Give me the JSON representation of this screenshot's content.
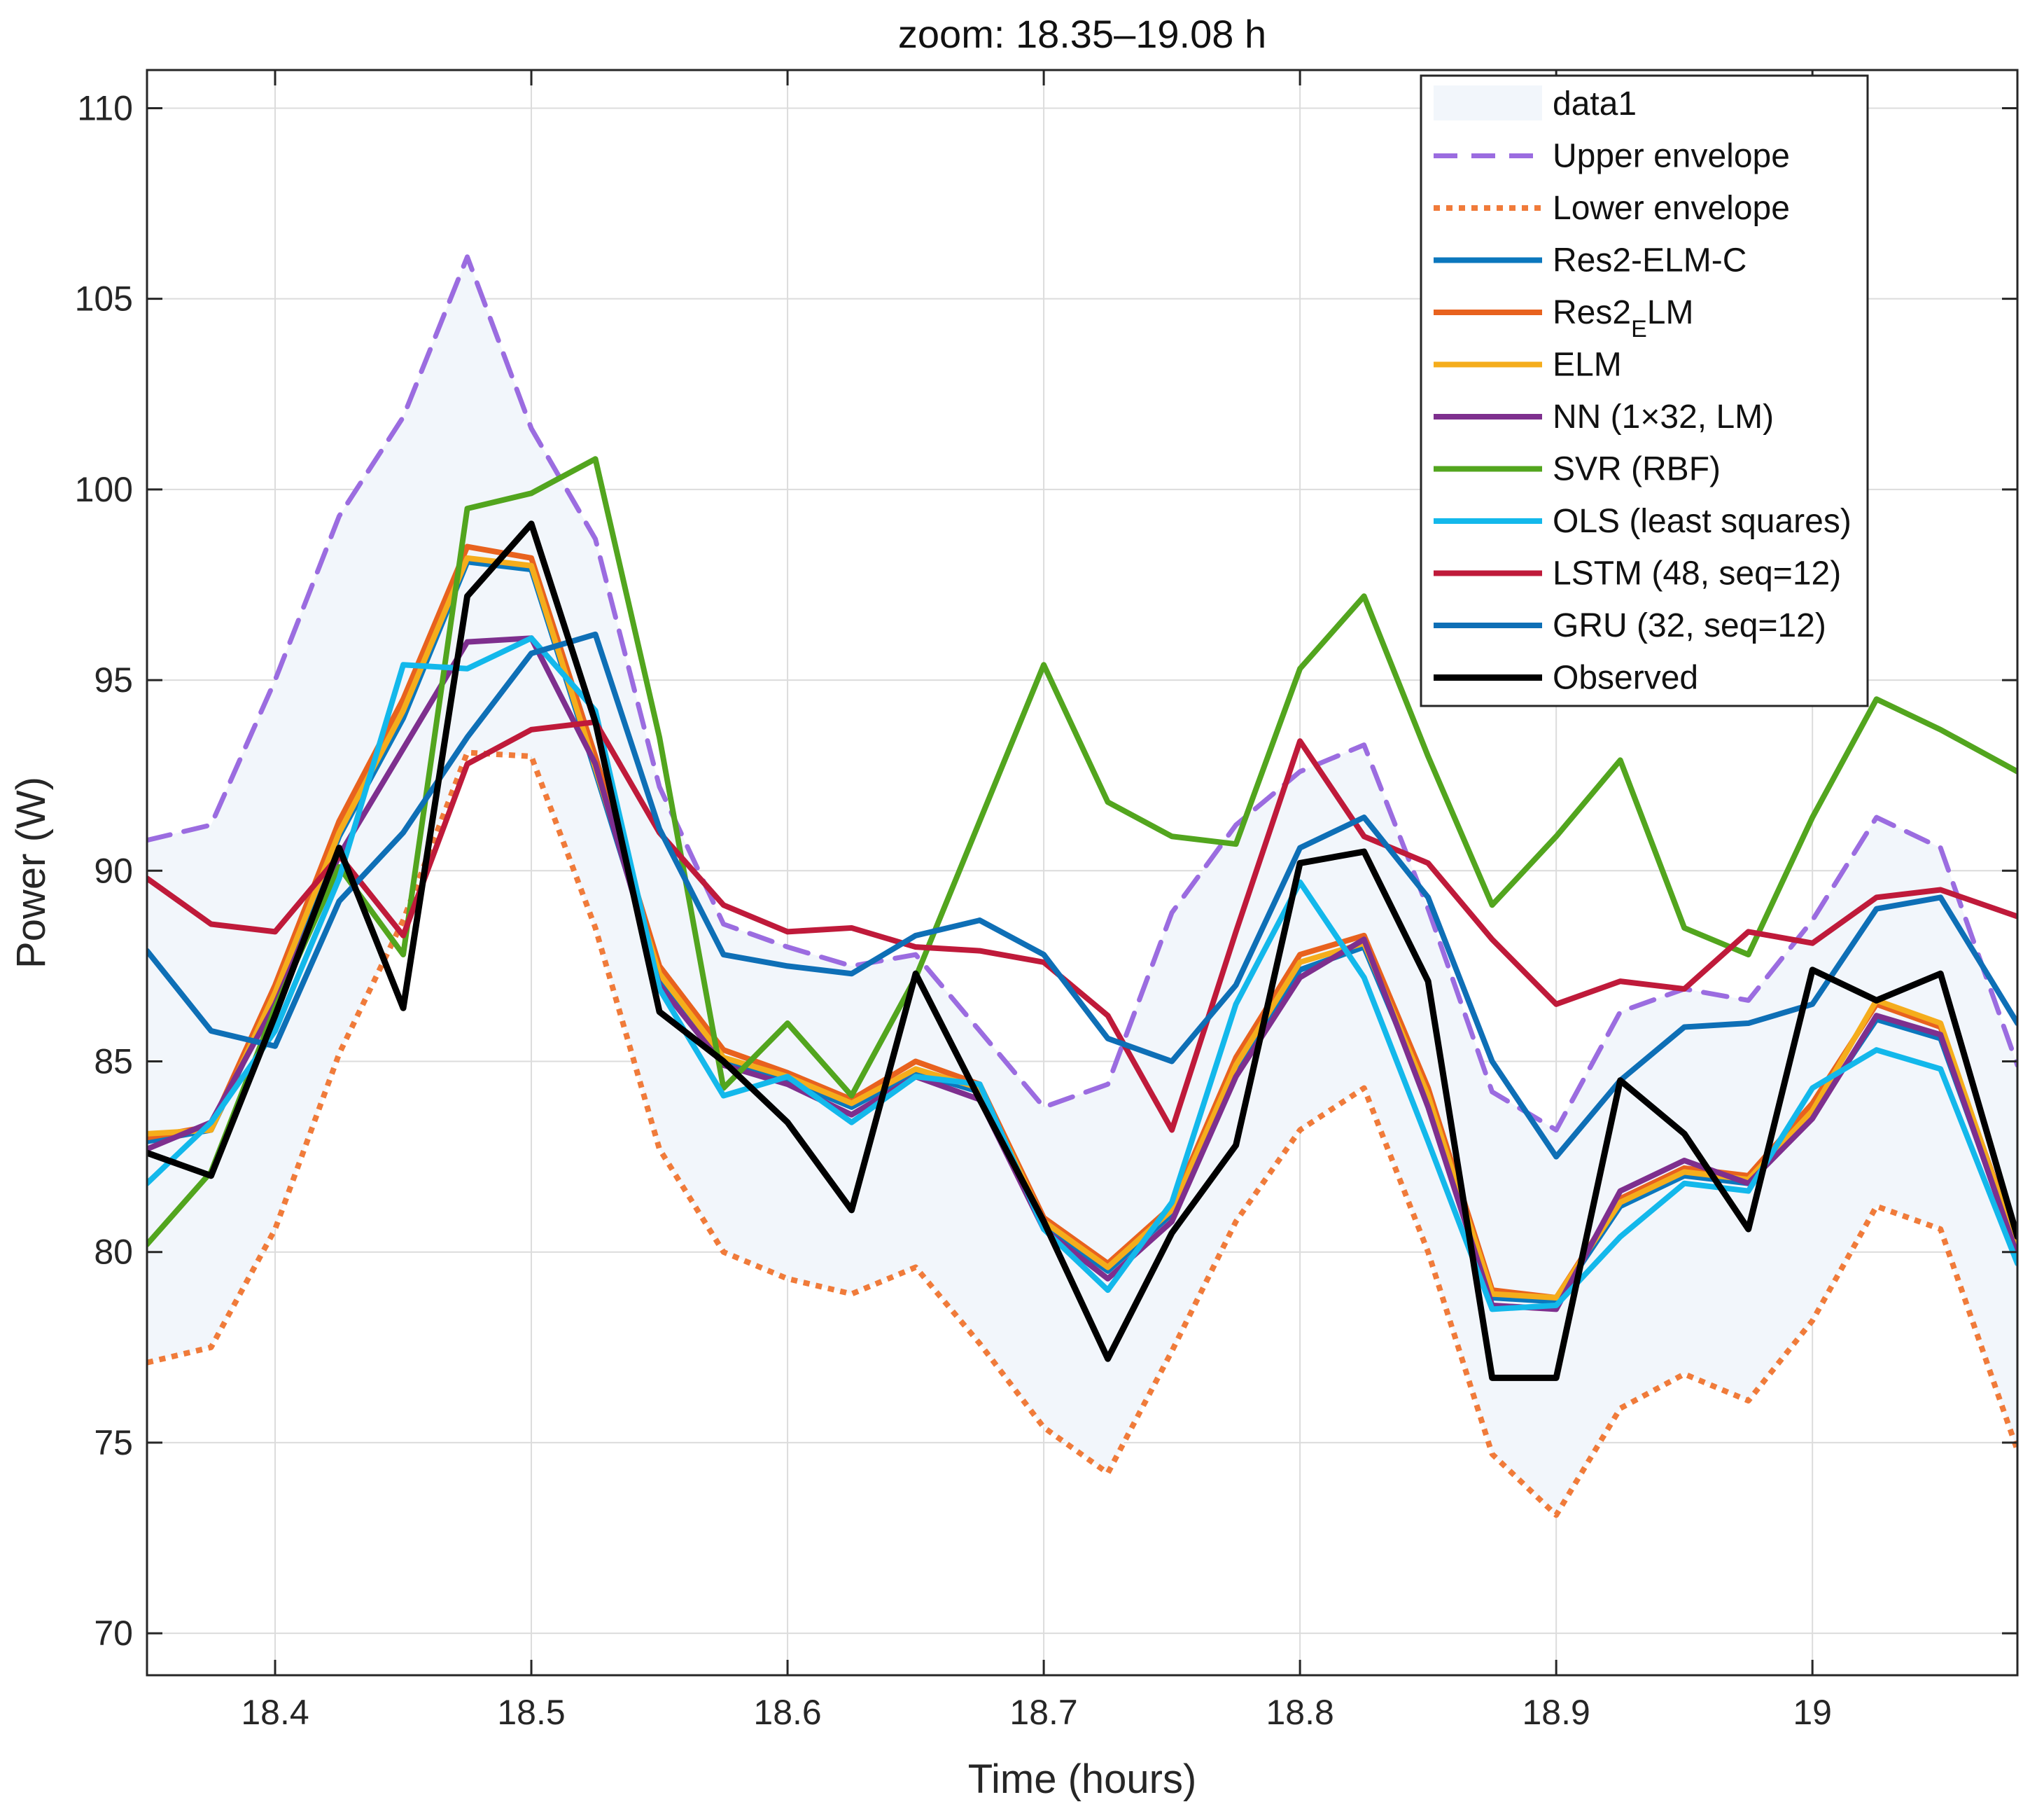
{
  "chart_data": {
    "type": "line",
    "title": "zoom: 18.35–19.08 h",
    "xlabel": "Time (hours)",
    "ylabel": "Power (W)",
    "xlim": [
      18.35,
      19.08
    ],
    "ylim": [
      68.9,
      111.0
    ],
    "xticks": [
      18.4,
      18.5,
      18.6,
      18.7,
      18.8,
      18.9,
      19.0
    ],
    "xtick_labels": [
      "18.4",
      "18.5",
      "18.6",
      "18.7",
      "18.8",
      "18.9",
      "19"
    ],
    "yticks": [
      70,
      75,
      80,
      85,
      90,
      95,
      100,
      105,
      110
    ],
    "ytick_labels": [
      "70",
      "75",
      "80",
      "85",
      "90",
      "95",
      "100",
      "105",
      "110"
    ],
    "grid": true,
    "legend_position": "top-right",
    "band": {
      "name": "data1",
      "color": "#f2f6fb",
      "upper": "Upper envelope",
      "lower": "Lower envelope"
    },
    "x": [
      18.35,
      18.375,
      18.4,
      18.425,
      18.45,
      18.475,
      18.5,
      18.525,
      18.55,
      18.575,
      18.6,
      18.625,
      18.65,
      18.675,
      18.7,
      18.725,
      18.75,
      18.775,
      18.8,
      18.825,
      18.85,
      18.875,
      18.9,
      18.925,
      18.95,
      18.975,
      19.0,
      19.025,
      19.05,
      19.08
    ],
    "series": [
      {
        "name": "Upper envelope",
        "color": "#9b6ce0",
        "style": "dashed",
        "width": 7,
        "values": [
          90.8,
          91.2,
          95.0,
          99.3,
          101.9,
          106.1,
          101.6,
          98.7,
          92.2,
          88.6,
          88.0,
          87.5,
          87.8,
          85.8,
          83.8,
          84.4,
          88.9,
          91.2,
          92.6,
          93.3,
          89.0,
          84.2,
          83.2,
          86.3,
          86.9,
          86.6,
          88.7,
          91.4,
          90.6,
          84.9
        ]
      },
      {
        "name": "Lower envelope",
        "color": "#f07b3a",
        "style": "dotted",
        "width": 8,
        "values": [
          77.1,
          77.5,
          80.6,
          85.2,
          88.7,
          93.1,
          93.0,
          88.5,
          82.7,
          80.0,
          79.3,
          78.9,
          79.6,
          77.6,
          75.4,
          74.2,
          77.4,
          80.8,
          83.2,
          84.3,
          80.0,
          74.7,
          73.1,
          75.9,
          76.8,
          76.1,
          78.2,
          81.2,
          80.6,
          74.8
        ]
      },
      {
        "name": "Res2-ELM-C",
        "color": "#0b77bd",
        "style": "solid",
        "width": 8,
        "values": [
          82.9,
          83.2,
          86.7,
          90.9,
          94.0,
          98.1,
          97.9,
          92.6,
          87.2,
          85.0,
          84.5,
          83.8,
          84.7,
          84.2,
          80.7,
          79.5,
          81.0,
          84.8,
          87.4,
          88.0,
          84.0,
          78.8,
          78.7,
          81.2,
          82.0,
          81.8,
          83.6,
          86.1,
          85.6,
          80.0
        ]
      },
      {
        "name": "Res2_ELM",
        "color": "#e8621e",
        "style": "solid",
        "width": 8,
        "values": [
          83.0,
          83.3,
          87.0,
          91.3,
          94.5,
          98.5,
          98.2,
          93.0,
          87.5,
          85.3,
          84.7,
          84.0,
          85.0,
          84.4,
          80.9,
          79.7,
          81.2,
          85.1,
          87.8,
          88.3,
          84.3,
          79.0,
          78.8,
          81.4,
          82.2,
          82.0,
          83.9,
          86.5,
          85.9,
          80.2
        ]
      },
      {
        "name": "ELM",
        "color": "#f5ad1c",
        "style": "solid",
        "width": 8,
        "values": [
          83.1,
          83.2,
          86.8,
          91.0,
          94.2,
          98.2,
          98.0,
          92.7,
          87.3,
          85.1,
          84.6,
          83.9,
          84.8,
          84.3,
          80.8,
          79.6,
          81.1,
          84.9,
          87.6,
          88.1,
          84.1,
          78.9,
          78.8,
          81.3,
          82.1,
          81.9,
          83.7,
          86.6,
          86.0,
          80.1
        ]
      },
      {
        "name": "NN (1×32, LM)",
        "color": "#7e2f8e",
        "style": "solid",
        "width": 8,
        "values": [
          82.7,
          83.4,
          86.5,
          90.4,
          93.2,
          96.0,
          96.1,
          92.8,
          87.0,
          84.9,
          84.4,
          83.6,
          84.6,
          84.0,
          80.6,
          79.3,
          80.8,
          84.6,
          87.2,
          88.2,
          83.8,
          78.6,
          78.5,
          81.6,
          82.4,
          81.8,
          83.5,
          86.2,
          85.7,
          79.9
        ]
      },
      {
        "name": "SVR (RBF)",
        "color": "#52a51e",
        "style": "solid",
        "width": 8,
        "values": [
          80.2,
          82.1,
          86.4,
          90.1,
          87.8,
          99.5,
          99.9,
          100.8,
          93.5,
          84.3,
          86.0,
          84.1,
          87.2,
          91.3,
          95.4,
          91.8,
          90.9,
          90.7,
          95.3,
          97.2,
          93.0,
          89.1,
          90.9,
          92.9,
          88.5,
          87.8,
          91.4,
          94.5,
          93.7,
          92.6
        ]
      },
      {
        "name": "OLS (least squares)",
        "color": "#13b8eb",
        "style": "solid",
        "width": 8,
        "values": [
          81.8,
          83.4,
          85.8,
          89.8,
          95.4,
          95.3,
          96.1,
          94.2,
          86.9,
          84.1,
          84.6,
          83.4,
          84.6,
          84.4,
          80.6,
          79.0,
          81.3,
          86.5,
          89.7,
          87.2,
          82.9,
          78.5,
          78.6,
          80.4,
          81.8,
          81.6,
          84.3,
          85.3,
          84.8,
          79.7
        ]
      },
      {
        "name": "LSTM (48, seq=12)",
        "color": "#bf1a3a",
        "style": "solid",
        "width": 8,
        "values": [
          89.8,
          88.6,
          88.4,
          90.4,
          88.3,
          92.8,
          93.7,
          93.9,
          91.0,
          89.1,
          88.4,
          88.5,
          88.0,
          87.9,
          87.6,
          86.2,
          83.2,
          88.4,
          93.4,
          90.9,
          90.2,
          88.2,
          86.5,
          87.1,
          86.9,
          88.4,
          88.1,
          89.3,
          89.5,
          88.8
        ]
      },
      {
        "name": "GRU (32, seq=12)",
        "color": "#0e6fb6",
        "style": "solid",
        "width": 8,
        "values": [
          87.9,
          85.8,
          85.4,
          89.2,
          91.0,
          93.5,
          95.7,
          96.2,
          91.1,
          87.8,
          87.5,
          87.3,
          88.3,
          88.7,
          87.8,
          85.6,
          85.0,
          87.0,
          90.6,
          91.4,
          89.3,
          85.0,
          82.5,
          84.5,
          85.9,
          86.0,
          86.5,
          89.0,
          89.3,
          86.0
        ]
      },
      {
        "name": "Observed",
        "color": "#000000",
        "style": "solid",
        "width": 9,
        "values": [
          82.6,
          82.0,
          86.2,
          90.6,
          86.4,
          97.2,
          99.1,
          93.9,
          86.3,
          85.0,
          83.4,
          81.1,
          87.3,
          84.0,
          80.8,
          77.2,
          80.5,
          82.8,
          90.2,
          90.5,
          87.1,
          76.7,
          76.7,
          84.5,
          83.1,
          80.6,
          87.4,
          86.6,
          87.3,
          80.4
        ]
      }
    ]
  }
}
